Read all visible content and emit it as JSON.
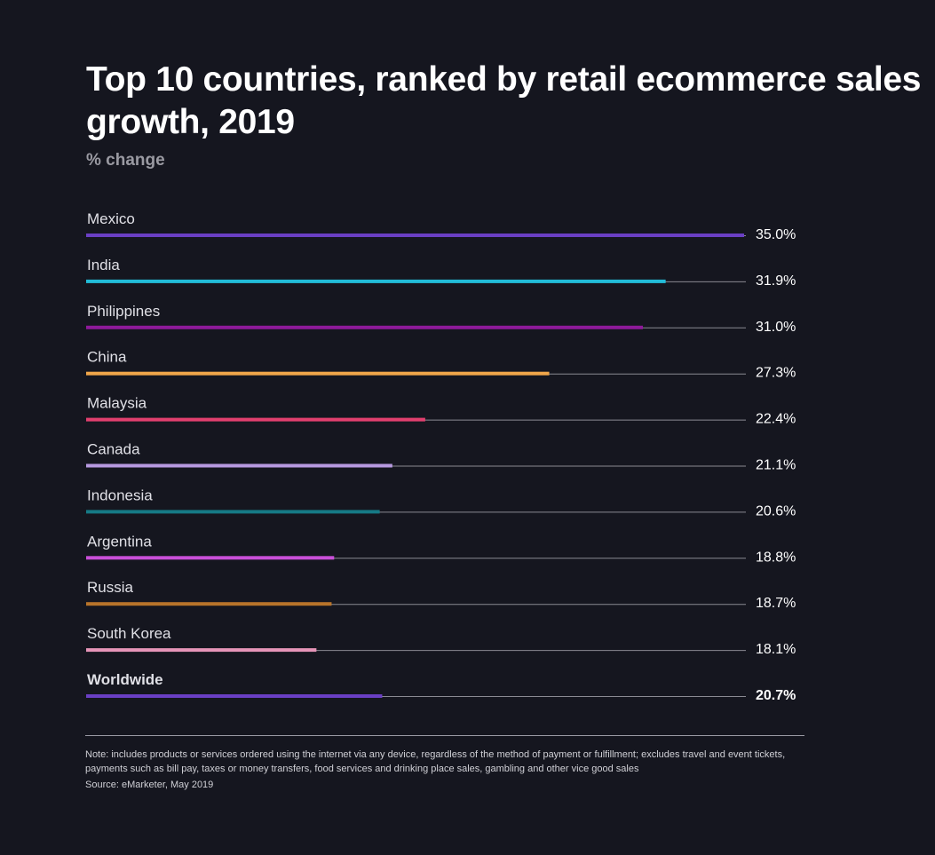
{
  "chart_data": {
    "type": "bar",
    "orientation": "horizontal",
    "title": "Top 10 countries, ranked by retail ecommerce sales growth, 2019",
    "subtitle": "% change",
    "categories": [
      "Mexico",
      "India",
      "Philippines",
      "China",
      "Malaysia",
      "Canada",
      "Indonesia",
      "Argentina",
      "Russia",
      "South Korea",
      "Worldwide"
    ],
    "values": [
      35.0,
      31.9,
      31.0,
      27.3,
      22.4,
      21.1,
      20.6,
      18.8,
      18.7,
      18.1,
      20.7
    ],
    "value_labels": [
      "35.0%",
      "31.9%",
      "31.0%",
      "27.3%",
      "22.4%",
      "21.1%",
      "20.6%",
      "18.8%",
      "18.7%",
      "18.1%",
      "20.7%"
    ],
    "colors": [
      "#6a3fc4",
      "#22bcd8",
      "#8e1a9a",
      "#f0a64a",
      "#e23f6e",
      "#b79ae0",
      "#167a86",
      "#c94fd8",
      "#b8742a",
      "#e695b8",
      "#6a3fc4"
    ],
    "bold_categories": [
      "Worldwide"
    ],
    "xlim": [
      9,
      35
    ],
    "grid": false,
    "legend": "none",
    "note": "Note: includes products or services ordered using the internet via any device, regardless of the method of payment or fulfillment; excludes travel and event tickets, payments such as bill pay, taxes or money transfers, food services and drinking place sales, gambling and other vice good sales",
    "source": "Source: eMarketer, May 2019"
  }
}
